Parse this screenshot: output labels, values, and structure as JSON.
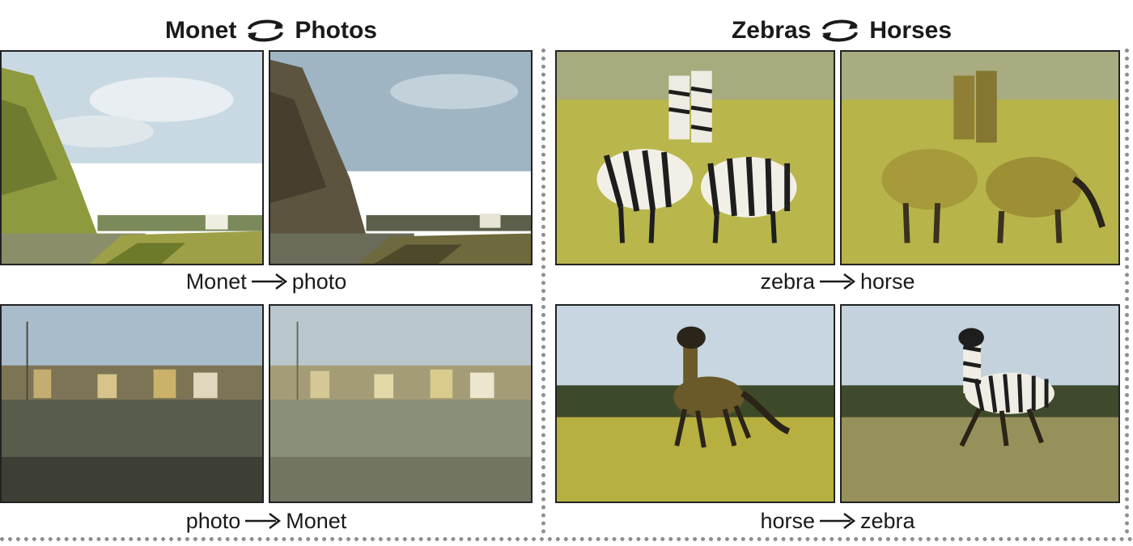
{
  "left_group": {
    "title_a": "Monet",
    "title_b": "Photos",
    "caption_top_from": "Monet",
    "caption_top_to": "photo",
    "caption_bottom_from": "photo",
    "caption_bottom_to": "Monet"
  },
  "right_group": {
    "title_a": "Zebras",
    "title_b": "Horses",
    "caption_top_from": "zebra",
    "caption_top_to": "horse",
    "caption_bottom_from": "horse",
    "caption_bottom_to": "zebra"
  },
  "colors": {
    "divider": "#8a8f91",
    "frame": "#222222",
    "sky": "#b7c9d3",
    "grass": "#b7b44c",
    "water": "#6f7466"
  },
  "icons": {
    "cycle": "cycle-arrows-icon",
    "arrow": "right-arrow-icon"
  }
}
